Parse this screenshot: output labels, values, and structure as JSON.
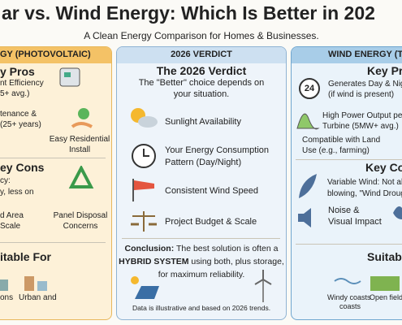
{
  "header": {
    "title": "ar vs. Wind Energy: Which Is Better in 202",
    "subtitle": "A Clean Energy Comparison for Homes & Businesses."
  },
  "solar": {
    "heading": "GY (PHOTOVOLTAIC)",
    "pros_heading": "y Pros",
    "pros": [
      [
        "nt Efficiency",
        "5+ avg.)"
      ],
      [
        "tenance &",
        "(25+ years)"
      ],
      [
        "Easy Residential",
        "Install"
      ]
    ],
    "cons_heading": "ey Cons",
    "cons": [
      [
        "cy:",
        "y, less on"
      ],
      [
        "d Area",
        "Scale"
      ],
      [
        "Panel Disposal",
        "Concerns"
      ]
    ],
    "suitable_heading": "itable For",
    "suitable": [
      "ons",
      "Urban and"
    ]
  },
  "verdict": {
    "heading": "2026 VERDICT",
    "title": "The 2026 Verdict",
    "intro": [
      "The \"Better\" choice depends on",
      "your situation."
    ],
    "factors": [
      [
        "Sunlight Availability"
      ],
      [
        "Your Energy Consumption",
        "Pattern (Day/Night)"
      ],
      [
        "Consistent Wind Speed"
      ],
      [
        "Project Budget & Scale"
      ]
    ],
    "conclusion": [
      "Conclusion:",
      " The best solution is often a",
      "HYBRID SYSTEM",
      " using both, plus storage,",
      "for maximum reliability."
    ],
    "note": "Data is illustrative and based on 2026 trends."
  },
  "wind": {
    "heading": "WIND ENERGY (T",
    "pros_heading": "Key Pro",
    "icon_label": "24",
    "pros": [
      [
        "Generates Day & Nigh",
        "(if wind is present)"
      ],
      [
        "High Power Output per",
        "Turbine (5MW+ avg.)"
      ],
      [
        "Compatible with Land",
        "Use (e.g., farming)"
      ]
    ],
    "cons_heading": "Key Con",
    "cons": [
      [
        "Variable Wind: Not alw",
        "blowing, \"Wind Drough"
      ],
      [
        "Noise &",
        "Visual Impact"
      ]
    ],
    "suitable_heading": "Suitable",
    "suitable": [
      "Windy coasts",
      "Open fields",
      "coasts"
    ]
  }
}
